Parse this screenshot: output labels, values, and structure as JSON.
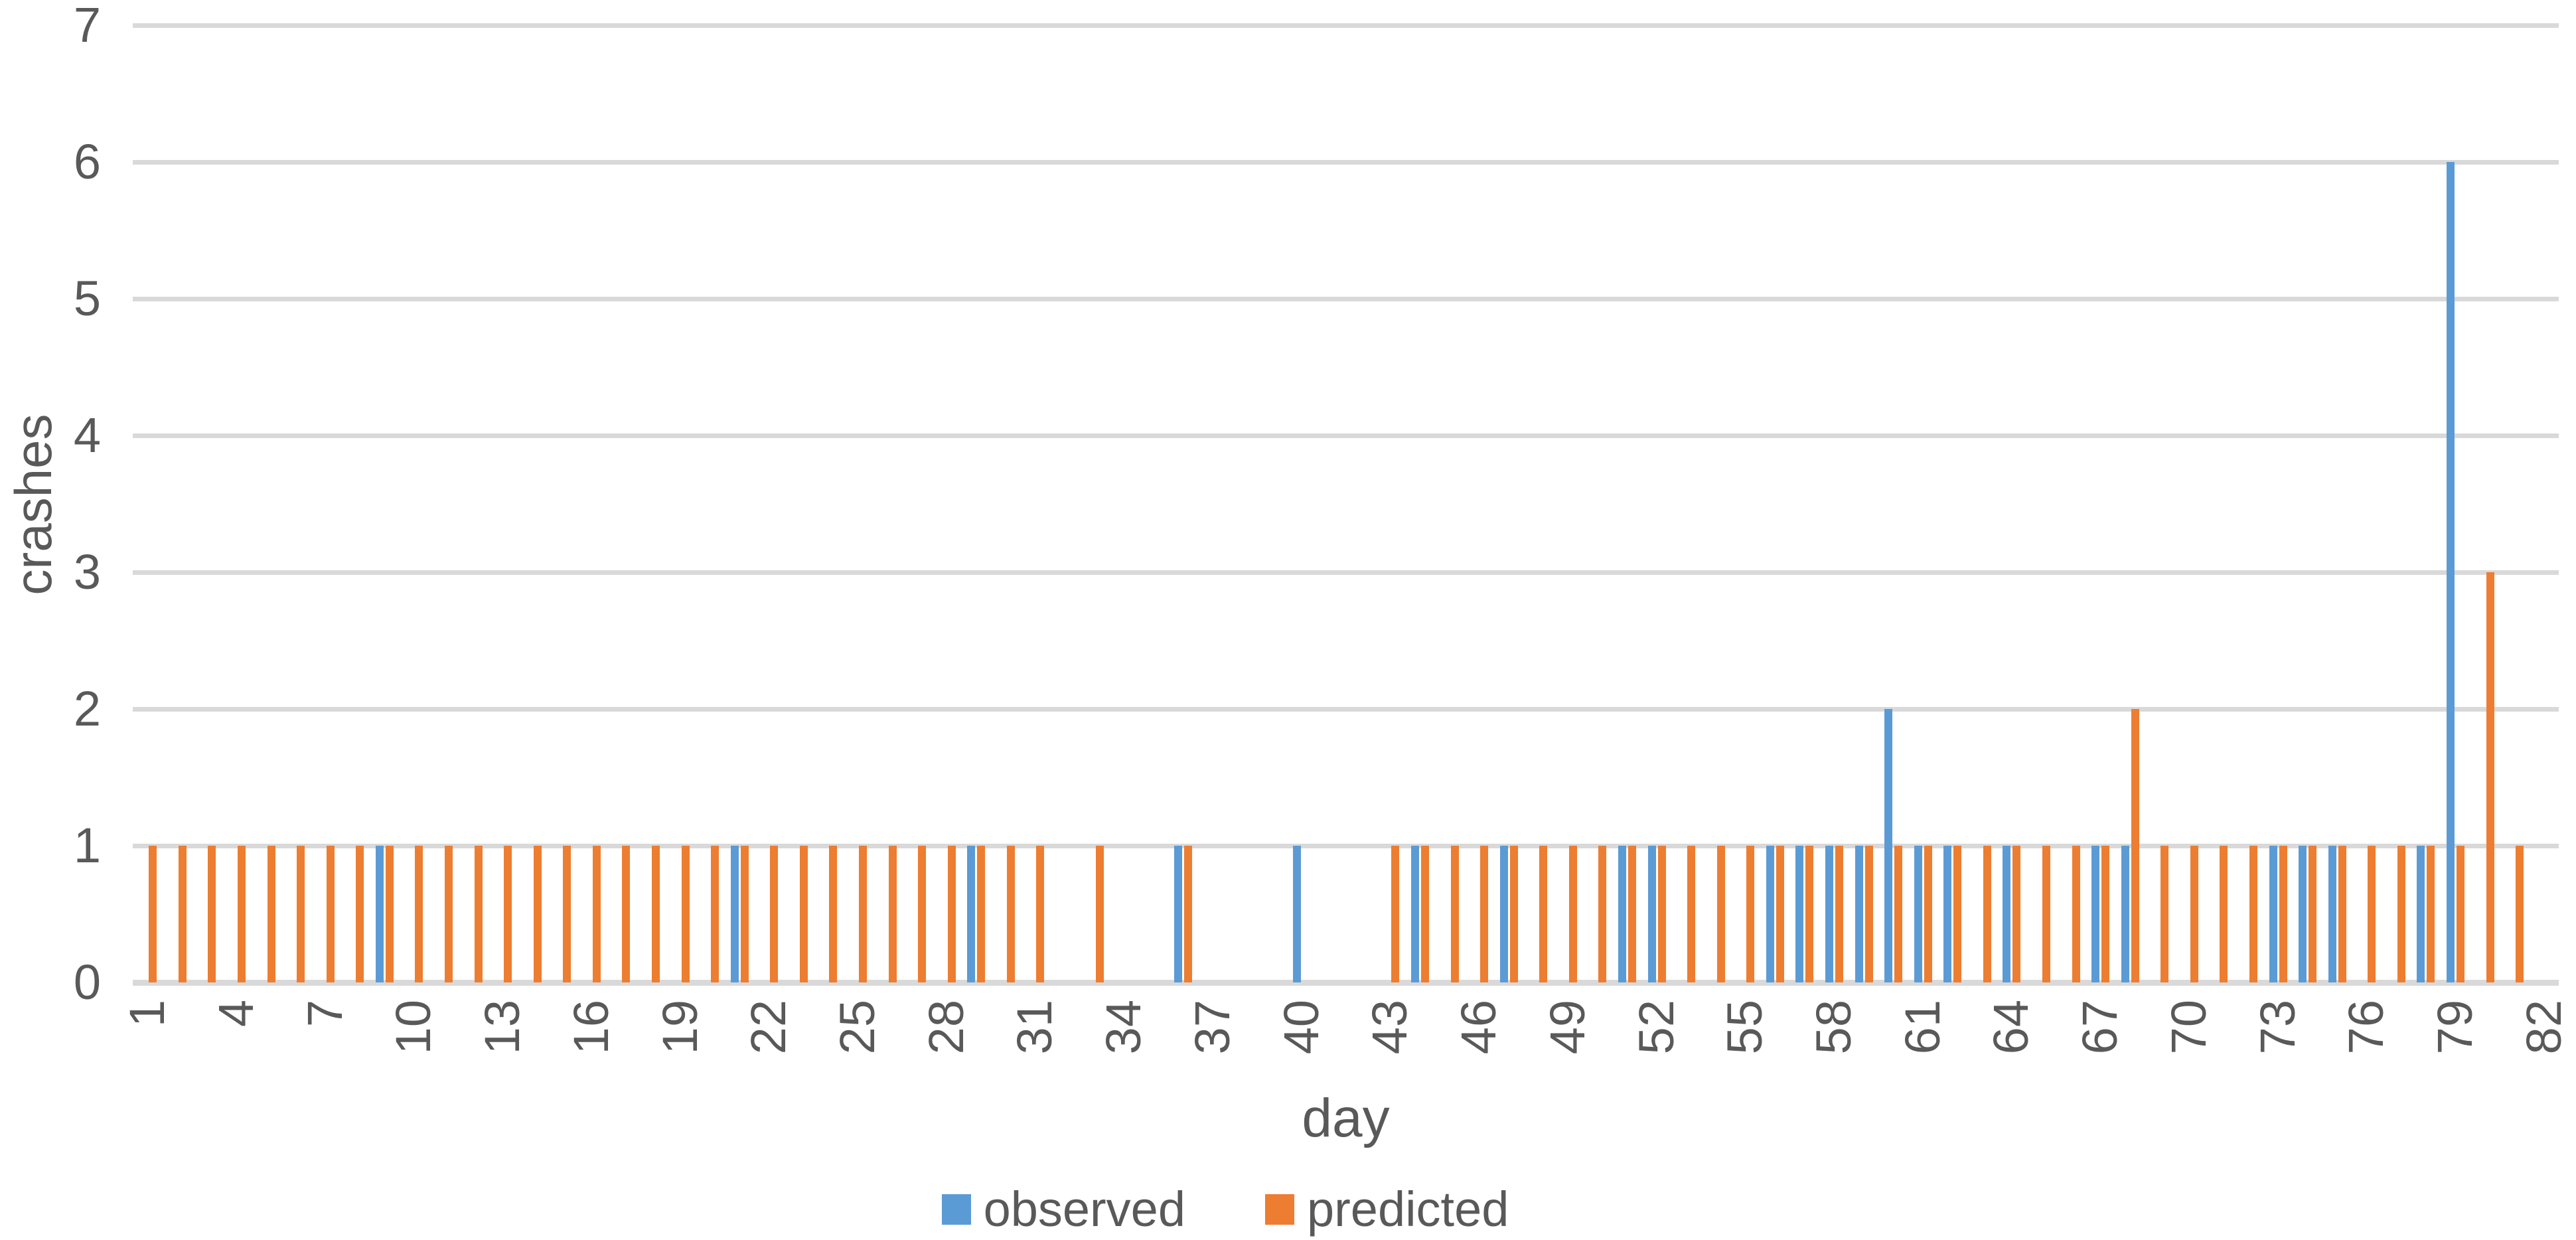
{
  "chart_data": {
    "type": "bar",
    "title": "",
    "xlabel": "day",
    "ylabel": "crashes",
    "ylim": [
      0,
      7
    ],
    "yticks": [
      0,
      1,
      2,
      3,
      4,
      5,
      6,
      7
    ],
    "grid": true,
    "legend_position": "bottom",
    "gridline_color": "#D9D9D9",
    "text_color": "#595959",
    "background_color": "#FFFFFF",
    "categories": [
      1,
      2,
      3,
      4,
      5,
      6,
      7,
      8,
      9,
      10,
      11,
      12,
      13,
      14,
      15,
      16,
      17,
      18,
      19,
      20,
      21,
      22,
      23,
      24,
      25,
      26,
      27,
      28,
      29,
      30,
      31,
      32,
      33,
      34,
      35,
      36,
      37,
      38,
      39,
      40,
      41,
      42,
      43,
      44,
      45,
      46,
      47,
      48,
      49,
      50,
      51,
      52,
      53,
      54,
      55,
      56,
      57,
      58,
      59,
      60,
      61,
      62,
      63,
      64,
      65,
      66,
      67,
      68,
      69,
      70,
      71,
      72,
      73,
      74,
      75,
      76,
      77,
      78,
      79,
      80,
      81,
      82
    ],
    "xtick_labels": [
      "1",
      "4",
      "7",
      "10",
      "13",
      "16",
      "19",
      "22",
      "25",
      "28",
      "31",
      "34",
      "37",
      "40",
      "43",
      "46",
      "49",
      "52",
      "55",
      "58",
      "61",
      "64",
      "67",
      "70",
      "73",
      "76",
      "79",
      "82"
    ],
    "series": [
      {
        "name": "observed",
        "color": "#5B9BD5",
        "values": [
          0,
          0,
          0,
          0,
          0,
          0,
          0,
          0,
          1,
          0,
          0,
          0,
          0,
          0,
          0,
          0,
          0,
          0,
          0,
          0,
          1,
          0,
          0,
          0,
          0,
          0,
          0,
          0,
          1,
          0,
          0,
          0,
          0,
          0,
          0,
          1,
          0,
          0,
          0,
          1,
          0,
          0,
          0,
          1,
          0,
          0,
          1,
          0,
          0,
          0,
          1,
          1,
          0,
          0,
          0,
          1,
          1,
          1,
          1,
          2,
          1,
          1,
          0,
          1,
          0,
          0,
          1,
          1,
          0,
          0,
          0,
          0,
          1,
          1,
          1,
          0,
          0,
          1,
          6,
          0,
          0,
          0
        ]
      },
      {
        "name": "predicted",
        "color": "#ED7D31",
        "values": [
          1,
          1,
          1,
          1,
          1,
          1,
          1,
          1,
          1,
          1,
          1,
          1,
          1,
          1,
          1,
          1,
          1,
          1,
          1,
          1,
          1,
          1,
          1,
          1,
          1,
          1,
          1,
          1,
          1,
          1,
          1,
          0,
          1,
          0,
          0,
          1,
          0,
          0,
          0,
          0,
          0,
          0,
          1,
          1,
          1,
          1,
          1,
          1,
          1,
          1,
          1,
          1,
          1,
          1,
          1,
          1,
          1,
          1,
          1,
          1,
          1,
          1,
          1,
          1,
          1,
          1,
          1,
          2,
          1,
          1,
          1,
          1,
          1,
          1,
          1,
          1,
          1,
          1,
          1,
          3,
          1,
          0
        ]
      }
    ]
  }
}
